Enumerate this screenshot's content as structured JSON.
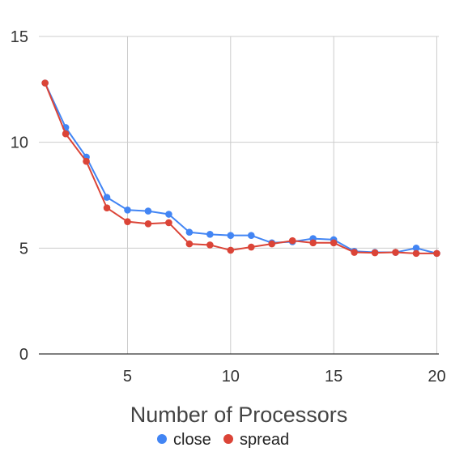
{
  "chart_data": {
    "type": "line",
    "title": "",
    "xlabel": "Number of Processors",
    "ylabel": "",
    "x": [
      1,
      2,
      3,
      4,
      5,
      6,
      7,
      8,
      9,
      10,
      11,
      12,
      13,
      14,
      15,
      16,
      17,
      18,
      19,
      20
    ],
    "xlim": [
      0.7,
      20.1
    ],
    "ylim": [
      0,
      15
    ],
    "xticks": [
      5,
      10,
      15,
      20
    ],
    "yticks": [
      0,
      5,
      10,
      15
    ],
    "grid": true,
    "legend_position": "bottom",
    "series": [
      {
        "name": "close",
        "color": "#4285F4",
        "values": [
          12.8,
          10.7,
          9.3,
          7.4,
          6.8,
          6.75,
          6.6,
          5.75,
          5.65,
          5.6,
          5.6,
          5.25,
          5.3,
          5.45,
          5.4,
          4.85,
          4.8,
          4.8,
          5.0,
          4.75
        ]
      },
      {
        "name": "spread",
        "color": "#DB4437",
        "values": [
          12.8,
          10.4,
          9.1,
          6.9,
          6.25,
          6.15,
          6.2,
          5.2,
          5.15,
          4.9,
          5.05,
          5.2,
          5.35,
          5.25,
          5.25,
          4.8,
          4.78,
          4.8,
          4.75,
          4.75
        ]
      }
    ]
  }
}
